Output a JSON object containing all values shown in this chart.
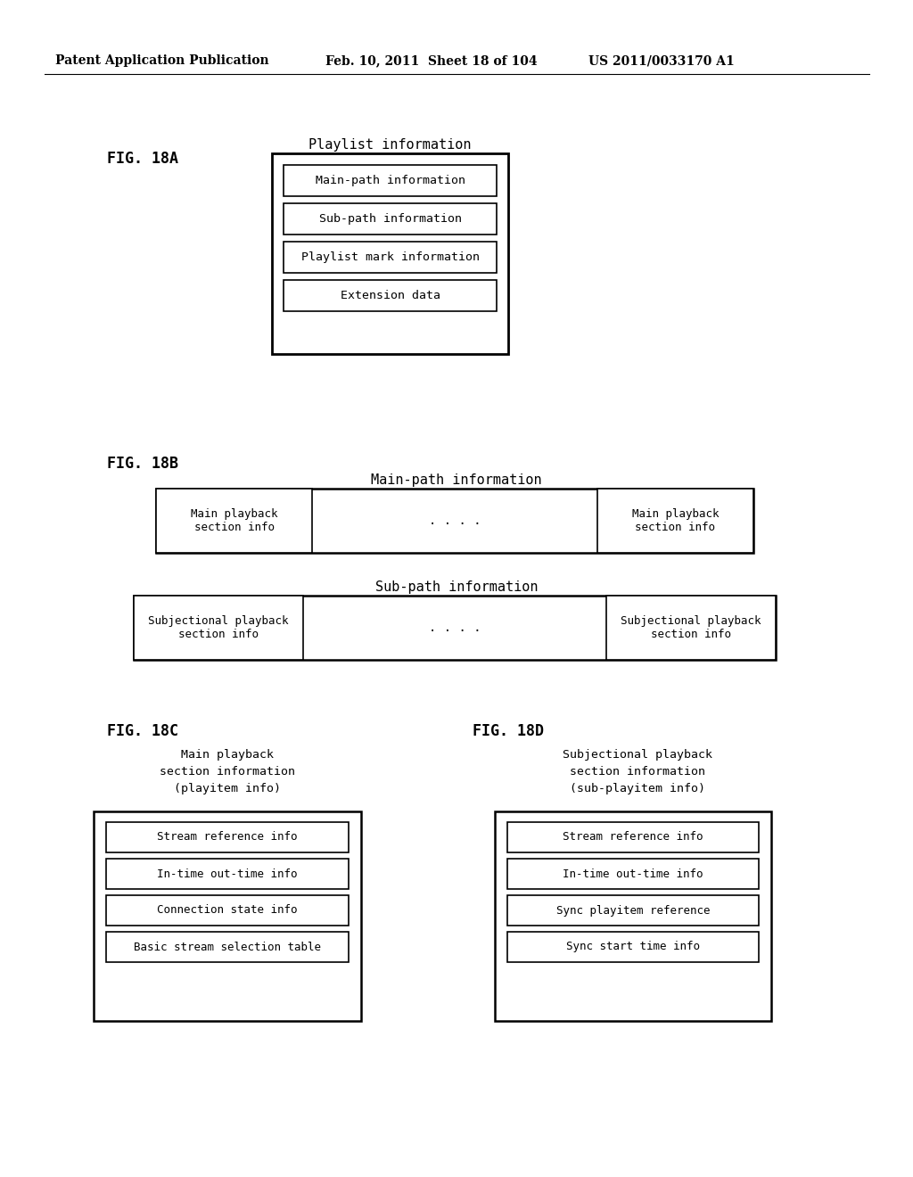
{
  "header_left": "Patent Application Publication",
  "header_mid": "Feb. 10, 2011  Sheet 18 of 104",
  "header_right": "US 2011/0033170 A1",
  "fig18a_label": "FIG. 18A",
  "fig18a_title": "Playlist information",
  "fig18a_boxes": [
    "Main-path information",
    "Sub-path information",
    "Playlist mark information",
    "Extension data"
  ],
  "fig18b_label": "FIG. 18B",
  "fig18b_main_title": "Main-path information",
  "fig18b_main_left": "Main playback\nsection info",
  "fig18b_main_dots": ". . . .",
  "fig18b_main_right": "Main playback\nsection info",
  "fig18b_sub_title": "Sub-path information",
  "fig18b_sub_left": "Subjectional playback\nsection info",
  "fig18b_sub_dots": ". . . .",
  "fig18b_sub_right": "Subjectional playback\nsection info",
  "fig18c_label": "FIG. 18C",
  "fig18c_title": "Main playback\nsection information\n(playitem info)",
  "fig18c_boxes": [
    "Stream reference info",
    "In-time out-time info",
    "Connection state info",
    "Basic stream selection table"
  ],
  "fig18d_label": "FIG. 18D",
  "fig18d_title": "Subjectional playback\nsection information\n(sub-playitem info)",
  "fig18d_boxes": [
    "Stream reference info",
    "In-time out-time info",
    "Sync playitem reference",
    "Sync start time info"
  ],
  "bg_color": "#ffffff",
  "box_color": "#ffffff",
  "border_color": "#000000",
  "text_color": "#000000"
}
